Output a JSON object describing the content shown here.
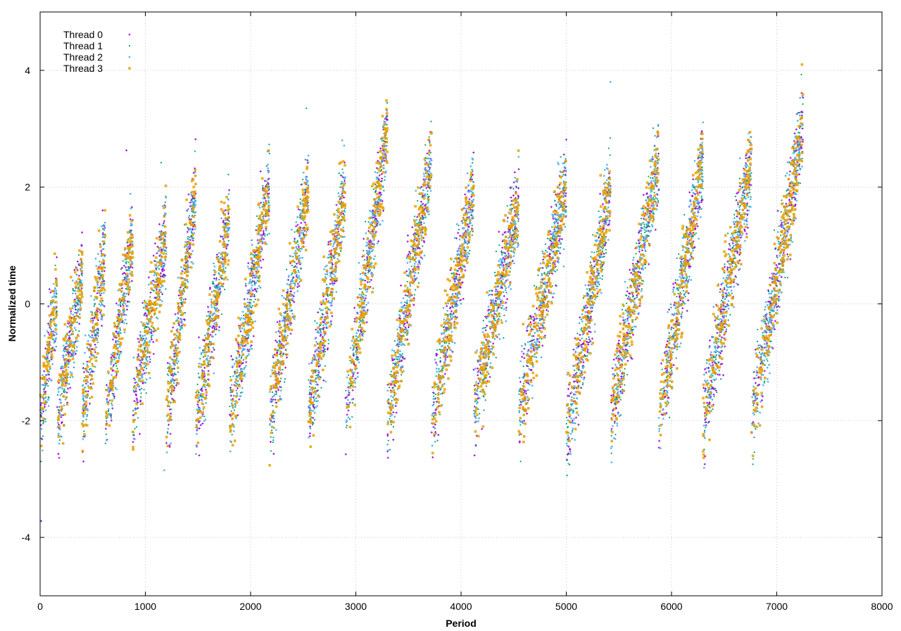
{
  "chart_data": {
    "type": "scatter",
    "title": "",
    "xlabel": "Period",
    "ylabel": "Normalized time",
    "xlim": [
      0,
      8000
    ],
    "ylim": [
      -5,
      5
    ],
    "xticks": [
      0,
      1000,
      2000,
      3000,
      4000,
      5000,
      6000,
      7000,
      8000
    ],
    "yticks": [
      -4,
      -2,
      0,
      2,
      4
    ],
    "grid": true,
    "legend_position": "top-left",
    "pattern": {
      "description_note": "sawtooth cycles, each rising from about -2 to +2",
      "cycles": [
        {
          "start": 0,
          "end": 160,
          "low": -2.0,
          "high": 0.2
        },
        {
          "start": 160,
          "end": 400,
          "low": -2.0,
          "high": 0.5
        },
        {
          "start": 400,
          "end": 620,
          "low": -2.0,
          "high": 1.0
        },
        {
          "start": 620,
          "end": 880,
          "low": -2.0,
          "high": 1.2
        },
        {
          "start": 880,
          "end": 1200,
          "low": -1.8,
          "high": 1.2
        },
        {
          "start": 1200,
          "end": 1480,
          "low": -2.0,
          "high": 2.0
        },
        {
          "start": 1480,
          "end": 1800,
          "low": -2.0,
          "high": 1.5
        },
        {
          "start": 1800,
          "end": 2180,
          "low": -2.0,
          "high": 2.0
        },
        {
          "start": 2180,
          "end": 2550,
          "low": -2.0,
          "high": 2.0
        },
        {
          "start": 2550,
          "end": 2900,
          "low": -2.0,
          "high": 2.0
        },
        {
          "start": 2900,
          "end": 3300,
          "low": -2.0,
          "high": 3.0
        },
        {
          "start": 3300,
          "end": 3720,
          "low": -2.0,
          "high": 2.5
        },
        {
          "start": 3720,
          "end": 4120,
          "low": -2.0,
          "high": 2.0
        },
        {
          "start": 4120,
          "end": 4550,
          "low": -1.8,
          "high": 1.8
        },
        {
          "start": 4550,
          "end": 5000,
          "low": -1.8,
          "high": 2.0
        },
        {
          "start": 5000,
          "end": 5420,
          "low": -2.3,
          "high": 2.0
        },
        {
          "start": 5420,
          "end": 5880,
          "low": -2.0,
          "high": 2.5
        },
        {
          "start": 5880,
          "end": 6300,
          "low": -2.0,
          "high": 2.5
        },
        {
          "start": 6300,
          "end": 6760,
          "low": -2.0,
          "high": 2.5
        },
        {
          "start": 6760,
          "end": 7250,
          "low": -2.0,
          "high": 3.0
        }
      ]
    },
    "series": [
      {
        "name": "Thread 0",
        "color": "#9400d3",
        "marker": "plus"
      },
      {
        "name": "Thread 1",
        "color": "#009e73",
        "marker": "cross"
      },
      {
        "name": "Thread 2",
        "color": "#56b4e9",
        "marker": "star"
      },
      {
        "name": "Thread 3",
        "color": "#e69f00",
        "marker": "box"
      }
    ],
    "outliers": [
      {
        "x": 10,
        "y": -3.72
      },
      {
        "x": 10,
        "y": -2.7
      },
      {
        "x": 1180,
        "y": -2.85
      },
      {
        "x": 1830,
        "y": -2.42
      },
      {
        "x": 2220,
        "y": -2.57
      },
      {
        "x": 2530,
        "y": 3.35
      },
      {
        "x": 5420,
        "y": 3.8
      },
      {
        "x": 7240,
        "y": 4.1
      },
      {
        "x": 820,
        "y": 2.63
      },
      {
        "x": 1150,
        "y": 2.42
      }
    ]
  }
}
